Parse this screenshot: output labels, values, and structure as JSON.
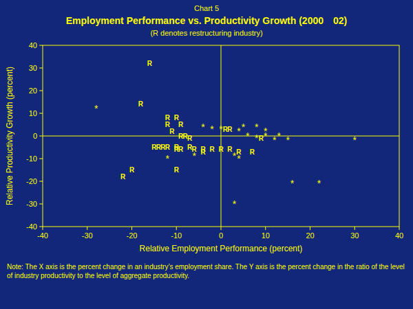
{
  "chart_data": {
    "type": "scatter",
    "title": "Employment Performance vs. Productivity Growth  (2000 02)",
    "subtitle": "(R denotes restructuring industry)",
    "x_label": "Relative Employment Performance (percent)",
    "y_label": "Relative Productivity Growth (percent)",
    "annotations": [
      "Chart 5",
      "Note: The X axis is the percent change in an industry’s employment share. The Y axis is the percent change in the ratio of the level\nof industry productivity to the level of aggregate productivity."
    ],
    "color": "#ffff00",
    "xlim": [
      -40,
      40
    ],
    "ylim": [
      -40,
      40
    ],
    "xticks": [
      -40,
      -30,
      -20,
      -10,
      0,
      10,
      20,
      30,
      40
    ],
    "yticks": [
      -40,
      -30,
      -20,
      -10,
      0,
      10,
      20,
      30,
      40
    ],
    "series": [
      {
        "name": "R",
        "color": "#ffff00",
        "x": [
          -16,
          -18,
          -12,
          -10,
          -12,
          -9,
          -11,
          -9,
          -8,
          -7,
          -7,
          -15,
          -14,
          -13,
          -12,
          -10,
          -10,
          -9,
          -6,
          -4,
          -2,
          -4,
          0,
          1,
          2,
          2,
          4,
          7,
          9,
          -20,
          -10,
          -22
        ],
        "values": [
          32,
          14,
          8,
          8,
          5,
          5,
          2,
          0,
          0,
          -1,
          -5,
          -5,
          -5,
          -5,
          -5,
          -5,
          -6,
          -6,
          -6,
          -6,
          -6,
          -7,
          -6,
          3,
          3,
          -6,
          -7,
          -7,
          -1,
          -15,
          -15,
          -18
        ]
      },
      {
        "name": "*",
        "color": "#ffff00",
        "x": [
          -28,
          -4,
          -2,
          0,
          5,
          8,
          4,
          10,
          6,
          10,
          13,
          8,
          12,
          15,
          30,
          -6,
          3,
          -12,
          4,
          16,
          22,
          3
        ],
        "values": [
          13,
          5,
          4,
          4,
          5,
          5,
          3,
          3,
          1,
          1,
          1,
          0,
          -1,
          -1,
          -1,
          -8,
          -8,
          -9,
          -9,
          -20,
          -20,
          -29
        ]
      }
    ]
  }
}
